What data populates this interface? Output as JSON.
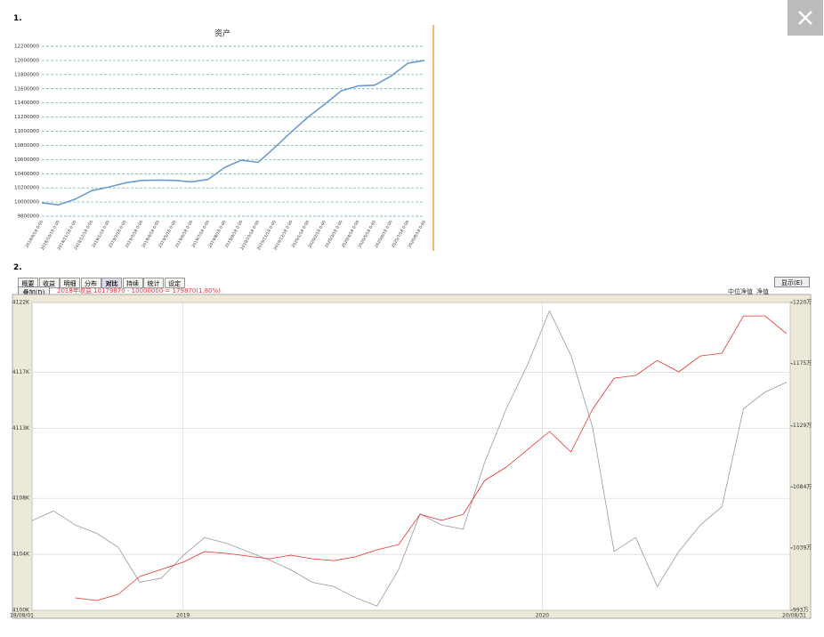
{
  "sections": [
    "1.",
    "2."
  ],
  "ui": {
    "tabs": [
      "概要",
      "收益",
      "明细",
      "分布",
      "对比",
      "持续",
      "统计",
      "设定"
    ],
    "active_tab": 4,
    "overlay_button": "叠加(D)",
    "display_button": "显示(E)",
    "summary": "2018年收益 10179870 - 10000000 = 179870(1.80%)",
    "radios": [
      "中位净值",
      "净值"
    ]
  },
  "chart_data": [
    {
      "type": "line",
      "title": "资产",
      "categories": [
        "2018/9/18 0:00",
        "2018/10/18 0:00",
        "2018/11/18 0:00",
        "2018/12/18 0:00",
        "2019/1/18 0:00",
        "2019/2/18 0:00",
        "2019/3/18 0:00",
        "2019/4/18 0:00",
        "2019/5/18 0:00",
        "2019/6/18 0:00",
        "2019/7/18 0:00",
        "2019/8/18 0:00",
        "2019/9/18 0:00",
        "2019/10/18 0:00",
        "2019/11/18 0:00",
        "2019/12/18 0:00",
        "2020/1/18 0:00",
        "2020/2/18 0:00",
        "2020/3/18 0:00",
        "2020/4/18 0:00",
        "2020/5/18 0:00",
        "2020/6/18 0:00",
        "2020/7/18 0:00",
        "2020/8/18 0:00"
      ],
      "series": [
        {
          "color": "#6b9bd0",
          "values": [
            9990000,
            9960000,
            10040000,
            10160000,
            10210000,
            10270000,
            10305000,
            10310000,
            10305000,
            10285000,
            10320000,
            10490000,
            10590000,
            10560000,
            10770000,
            10990000,
            11200000,
            11380000,
            11570000,
            11640000,
            11650000,
            11780000,
            11960000,
            12000000
          ]
        }
      ],
      "ylim": [
        9800000,
        12200000
      ],
      "yticks": [
        9800000,
        10000000,
        10200000,
        10400000,
        10600000,
        10800000,
        11000000,
        11200000,
        11400000,
        11600000,
        11800000,
        12000000,
        12200000
      ],
      "grid": true
    },
    {
      "type": "line",
      "x": [
        2018.58,
        2018.64,
        2018.7,
        2018.76,
        2018.82,
        2018.88,
        2018.94,
        2019.0,
        2019.06,
        2019.12,
        2019.18,
        2019.24,
        2019.3,
        2019.36,
        2019.42,
        2019.48,
        2019.54,
        2019.6,
        2019.66,
        2019.72,
        2019.78,
        2019.84,
        2019.9,
        2019.96,
        2020.02,
        2020.08,
        2020.14,
        2020.2,
        2020.26,
        2020.32,
        2020.38,
        2020.44,
        2020.5,
        2020.56,
        2020.62,
        2020.68
      ],
      "xlim": [
        2018.58,
        2020.69
      ],
      "xticks": [
        {
          "value": 2018.58,
          "label": "18/08/01"
        },
        2019,
        2020,
        {
          "value": 2020.69,
          "label": "20/08/31"
        }
      ],
      "series": [
        {
          "color": "#9a9a9a",
          "values": [
            4106.4,
            4107.1,
            4106.1,
            4105.5,
            4104.5,
            4102.0,
            4102.3,
            4103.9,
            4105.2,
            4104.8,
            4104.2,
            4103.6,
            4102.9,
            4102.0,
            4101.7,
            4100.9,
            4100.3,
            4102.9,
            4106.9,
            4106.1,
            4105.8,
            4110.6,
            4114.4,
            4117.6,
            4121.4,
            4118.2,
            4113.1,
            4104.2,
            4105.2,
            4101.7,
            4104.2,
            4106.1,
            4107.4,
            4114.4,
            4115.6,
            4116.3
          ]
        },
        {
          "color": "#e8322c",
          "axis": "y2",
          "values": [
            null,
            null,
            1002.2,
            1000.2,
            1004.8,
            1017.9,
            1023.2,
            1028.4,
            1036.3,
            1035.0,
            1033.0,
            1031.0,
            1033.7,
            1031.0,
            1029.7,
            1032.4,
            1037.6,
            1041.5,
            1063.8,
            1059.3,
            1063.8,
            1088.8,
            1098.6,
            1111.7,
            1124.9,
            1109.8,
            1141.3,
            1164.2,
            1166.2,
            1177.3,
            1168.8,
            1180.6,
            1182.6,
            1210.1,
            1210.1,
            1197.0
          ]
        }
      ],
      "ylim": [
        4100,
        4122
      ],
      "yticks": [
        {
          "value": 4100,
          "label": "4100K"
        },
        {
          "value": 4104,
          "label": "4104K"
        },
        {
          "value": 4108,
          "label": "4108K"
        },
        {
          "value": 4113,
          "label": "4113K"
        },
        {
          "value": 4117,
          "label": "4117K"
        },
        {
          "value": 4122,
          "label": "4122K"
        }
      ],
      "y2lim": [
        993,
        1220
      ],
      "y2ticks": [
        {
          "value": 993,
          "label": "993万"
        },
        {
          "value": 1039,
          "label": "1039万"
        },
        {
          "value": 1084,
          "label": "1084万"
        },
        {
          "value": 1129,
          "label": "1129万"
        },
        {
          "value": 1175,
          "label": "1175万"
        },
        {
          "value": 1220,
          "label": "1220万"
        }
      ],
      "grid": true
    }
  ]
}
